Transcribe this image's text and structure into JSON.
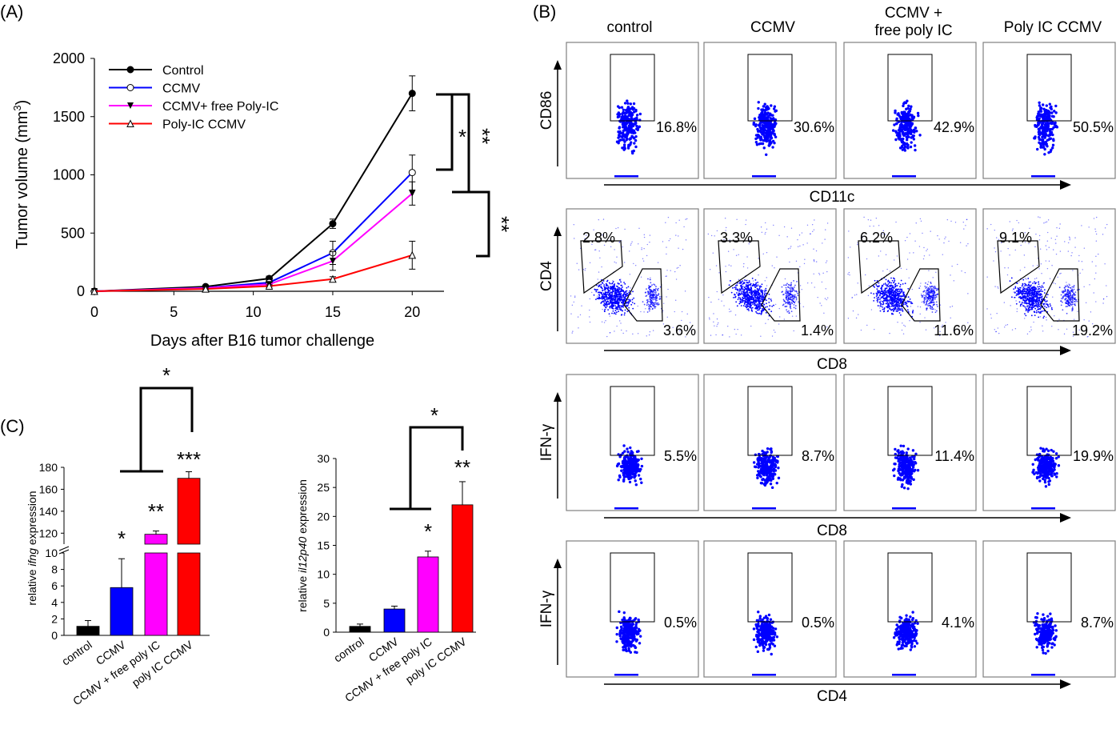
{
  "panel_labels": {
    "a": "(A)",
    "b": "(B)",
    "c": "(C)"
  },
  "chart_data": [
    {
      "id": "A",
      "type": "line",
      "xlabel": "Days after B16 tumor challenge",
      "ylabel": "Tumor volume (mm",
      "ylabel_sup": "3",
      "ylabel_end": ")",
      "xlim": [
        0,
        22
      ],
      "ylim": [
        0,
        2000
      ],
      "xticks": [
        "0",
        "5",
        "10",
        "15",
        "20"
      ],
      "yticks": [
        "0",
        "500",
        "1000",
        "1500",
        "2000"
      ],
      "x": [
        0,
        7,
        11,
        15,
        20
      ],
      "series": [
        {
          "name": "Control",
          "color": "#000000",
          "marker": "circle-filled",
          "values": [
            0,
            40,
            110,
            580,
            1700
          ],
          "err": [
            0,
            10,
            20,
            40,
            150
          ]
        },
        {
          "name": "CCMV",
          "color": "#0000ff",
          "marker": "circle-open",
          "values": [
            0,
            30,
            75,
            330,
            1020
          ],
          "err": [
            0,
            10,
            20,
            100,
            150
          ]
        },
        {
          "name": "CCMV+ free Poly-IC",
          "color": "#ff00ff",
          "marker": "triangle-down-filled",
          "values": [
            0,
            28,
            60,
            260,
            840
          ],
          "err": [
            0,
            10,
            15,
            80,
            100
          ]
        },
        {
          "name": "Poly-IC CCMV",
          "color": "#ff0000",
          "marker": "triangle-up-open",
          "values": [
            0,
            20,
            45,
            105,
            310
          ],
          "err": [
            0,
            8,
            10,
            20,
            120
          ]
        }
      ],
      "significance": [
        "*",
        "**",
        "**"
      ]
    },
    {
      "id": "B",
      "type": "scatter",
      "columns": [
        "control",
        "CCMV",
        "CCMV +\nfree poly IC",
        "Poly IC CCMV"
      ],
      "rows": [
        {
          "ylabel": "CD86",
          "xlabel": "CD11c",
          "gate": "single",
          "values": [
            "16.8%",
            "30.6%",
            "42.9%",
            "50.5%"
          ]
        },
        {
          "ylabel": "CD4",
          "xlabel": "CD8",
          "gate": "double",
          "upper_values": [
            "2.8%",
            "3.3%",
            "6.2%",
            "9.1%"
          ],
          "lower_values": [
            "3.6%",
            "1.4%",
            "11.6%",
            "19.2%"
          ]
        },
        {
          "ylabel": "IFN-γ",
          "xlabel": "CD8",
          "gate": "single",
          "values": [
            "5.5%",
            "8.7%",
            "11.4%",
            "19.9%"
          ]
        },
        {
          "ylabel": "IFN-γ",
          "xlabel": "CD4",
          "gate": "single",
          "values": [
            "0.5%",
            "0.5%",
            "4.1%",
            "8.7%"
          ]
        }
      ]
    },
    {
      "id": "C1",
      "type": "bar",
      "ylabel_pre": "relative ",
      "ylabel_gene": "ifng",
      "ylabel_post": " expression",
      "categories": [
        "control",
        "CCMV",
        "CCMV + free poly IC",
        "poly IC CCMV"
      ],
      "values": [
        1.1,
        5.8,
        119,
        170
      ],
      "err": [
        0.7,
        3.5,
        3,
        6
      ],
      "colors": [
        "#000000",
        "#0000ff",
        "#ff00ff",
        "#ff0000"
      ],
      "lower_ylim": [
        0,
        10
      ],
      "upper_ylim": [
        110,
        180
      ],
      "lower_yticks": [
        "0",
        "2",
        "4",
        "6",
        "8",
        "10"
      ],
      "upper_yticks": [
        "120",
        "140",
        "160",
        "180"
      ],
      "stars": [
        "",
        "*",
        "**",
        "***"
      ],
      "bracket_star": "*"
    },
    {
      "id": "C2",
      "type": "bar",
      "ylabel_pre": "relative ",
      "ylabel_gene": "il12p40",
      "ylabel_post": " expression",
      "categories": [
        "control",
        "CCMV",
        "CCMV + free poly IC",
        "poly IC CCMV"
      ],
      "values": [
        1.0,
        4.0,
        13.0,
        22.0
      ],
      "err": [
        0.4,
        0.5,
        1.0,
        4.0
      ],
      "colors": [
        "#000000",
        "#0000ff",
        "#ff00ff",
        "#ff0000"
      ],
      "ylim": [
        0,
        30
      ],
      "yticks": [
        "0",
        "5",
        "10",
        "15",
        "20",
        "25",
        "30"
      ],
      "stars": [
        "",
        "",
        "*",
        "**"
      ],
      "bracket_star": "*"
    }
  ]
}
